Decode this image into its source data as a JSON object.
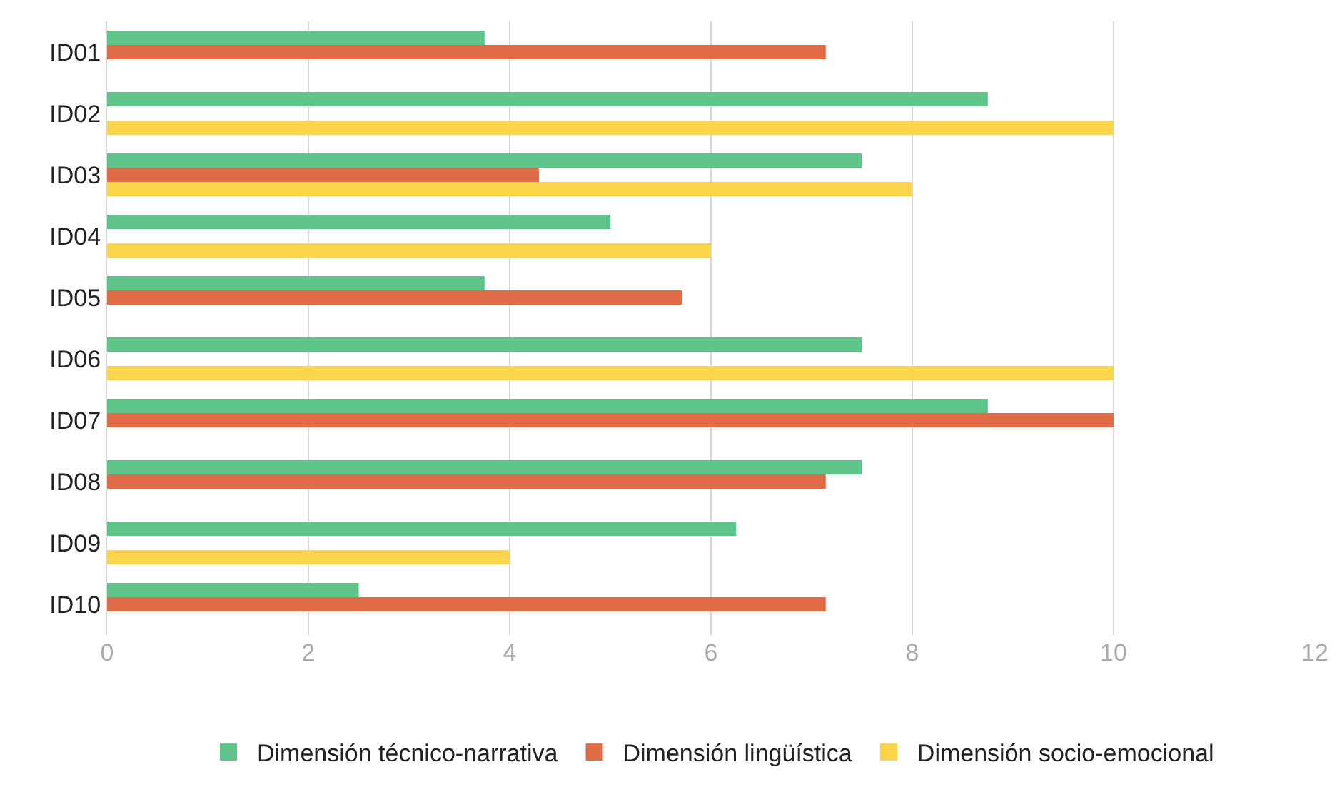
{
  "chart_data": {
    "type": "bar",
    "orientation": "horizontal",
    "categories": [
      "ID01",
      "ID02",
      "ID03",
      "ID04",
      "ID05",
      "ID06",
      "ID07",
      "ID08",
      "ID09",
      "ID10"
    ],
    "series": [
      {
        "name": "Dimensión técnico-narrativa",
        "color": "#5fc48a",
        "values": [
          3.75,
          8.75,
          7.5,
          5.0,
          3.75,
          7.5,
          8.75,
          7.5,
          6.25,
          2.5
        ]
      },
      {
        "name": "Dimensión lingüística",
        "color": "#e06b47",
        "values": [
          7.14,
          null,
          4.29,
          null,
          5.71,
          null,
          10,
          7.14,
          null,
          7.14
        ]
      },
      {
        "name": "Dimensión socio-emocional",
        "color": "#fbd54c",
        "values": [
          null,
          10,
          8,
          6,
          null,
          10,
          null,
          null,
          4,
          null
        ]
      }
    ],
    "xlim": [
      0,
      12
    ],
    "xticks": [
      0,
      2,
      4,
      6,
      8,
      10,
      12
    ],
    "grid": "x",
    "legend": "bottom"
  }
}
